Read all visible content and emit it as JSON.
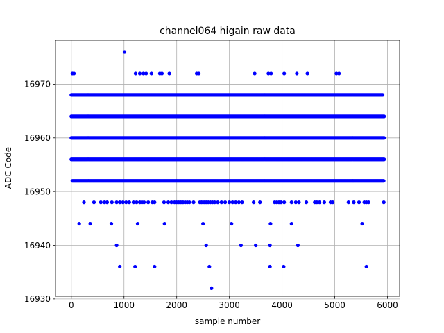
{
  "chart_data": {
    "type": "scatter",
    "title": "channel064 higain raw data",
    "xlabel": "sample number",
    "ylabel": "ADC Code",
    "xlim": [
      -300,
      6230
    ],
    "ylim": [
      16930.5,
      16978.2
    ],
    "xticks": [
      0,
      1000,
      2000,
      3000,
      4000,
      5000,
      6000
    ],
    "yticks": [
      16930,
      16940,
      16950,
      16960,
      16970
    ],
    "grid": true,
    "marker_color": "#0000ff",
    "series": [
      {
        "dense_rows": [
          {
            "y": 16956,
            "x_start": 0,
            "x_end": 5940
          },
          {
            "y": 16960,
            "x_start": 0,
            "x_end": 5940
          },
          {
            "y": 16964,
            "x_start": 0,
            "x_end": 5940
          },
          {
            "y": 16952,
            "x_start": 20,
            "x_end": 5940
          },
          {
            "y": 16968,
            "x_start": 0,
            "x_end": 5920
          }
        ],
        "points": [
          {
            "x": 1010,
            "y": 16976
          },
          {
            "x": 20,
            "y": 16972
          },
          {
            "x": 50,
            "y": 16972
          },
          {
            "x": 1220,
            "y": 16972
          },
          {
            "x": 1300,
            "y": 16972
          },
          {
            "x": 1370,
            "y": 16972
          },
          {
            "x": 1420,
            "y": 16972
          },
          {
            "x": 1520,
            "y": 16972
          },
          {
            "x": 1680,
            "y": 16972
          },
          {
            "x": 1720,
            "y": 16972
          },
          {
            "x": 1860,
            "y": 16972
          },
          {
            "x": 2380,
            "y": 16972
          },
          {
            "x": 2420,
            "y": 16972
          },
          {
            "x": 3480,
            "y": 16972
          },
          {
            "x": 3740,
            "y": 16972
          },
          {
            "x": 3790,
            "y": 16972
          },
          {
            "x": 4040,
            "y": 16972
          },
          {
            "x": 4280,
            "y": 16972
          },
          {
            "x": 4480,
            "y": 16972
          },
          {
            "x": 5030,
            "y": 16972
          },
          {
            "x": 5080,
            "y": 16972
          },
          {
            "x": 240,
            "y": 16948
          },
          {
            "x": 430,
            "y": 16948
          },
          {
            "x": 560,
            "y": 16948
          },
          {
            "x": 630,
            "y": 16948
          },
          {
            "x": 680,
            "y": 16948
          },
          {
            "x": 770,
            "y": 16948
          },
          {
            "x": 860,
            "y": 16948
          },
          {
            "x": 920,
            "y": 16948
          },
          {
            "x": 980,
            "y": 16948
          },
          {
            "x": 1040,
            "y": 16948
          },
          {
            "x": 1100,
            "y": 16948
          },
          {
            "x": 1180,
            "y": 16948
          },
          {
            "x": 1240,
            "y": 16948
          },
          {
            "x": 1300,
            "y": 16948
          },
          {
            "x": 1340,
            "y": 16948
          },
          {
            "x": 1380,
            "y": 16948
          },
          {
            "x": 1460,
            "y": 16948
          },
          {
            "x": 1540,
            "y": 16948
          },
          {
            "x": 1580,
            "y": 16948
          },
          {
            "x": 1760,
            "y": 16948
          },
          {
            "x": 1840,
            "y": 16948
          },
          {
            "x": 1900,
            "y": 16948
          },
          {
            "x": 1960,
            "y": 16948
          },
          {
            "x": 2000,
            "y": 16948
          },
          {
            "x": 2040,
            "y": 16948
          },
          {
            "x": 2080,
            "y": 16948
          },
          {
            "x": 2120,
            "y": 16948
          },
          {
            "x": 2160,
            "y": 16948
          },
          {
            "x": 2200,
            "y": 16948
          },
          {
            "x": 2240,
            "y": 16948
          },
          {
            "x": 2320,
            "y": 16948
          },
          {
            "x": 2440,
            "y": 16948
          },
          {
            "x": 2470,
            "y": 16948
          },
          {
            "x": 2500,
            "y": 16948
          },
          {
            "x": 2530,
            "y": 16948
          },
          {
            "x": 2560,
            "y": 16948
          },
          {
            "x": 2600,
            "y": 16948
          },
          {
            "x": 2640,
            "y": 16948
          },
          {
            "x": 2680,
            "y": 16948
          },
          {
            "x": 2720,
            "y": 16948
          },
          {
            "x": 2780,
            "y": 16948
          },
          {
            "x": 2850,
            "y": 16948
          },
          {
            "x": 2920,
            "y": 16948
          },
          {
            "x": 3000,
            "y": 16948
          },
          {
            "x": 3060,
            "y": 16948
          },
          {
            "x": 3120,
            "y": 16948
          },
          {
            "x": 3180,
            "y": 16948
          },
          {
            "x": 3240,
            "y": 16948
          },
          {
            "x": 3460,
            "y": 16948
          },
          {
            "x": 3580,
            "y": 16948
          },
          {
            "x": 3860,
            "y": 16948
          },
          {
            "x": 3900,
            "y": 16948
          },
          {
            "x": 3940,
            "y": 16948
          },
          {
            "x": 3980,
            "y": 16948
          },
          {
            "x": 4040,
            "y": 16948
          },
          {
            "x": 4180,
            "y": 16948
          },
          {
            "x": 4260,
            "y": 16948
          },
          {
            "x": 4320,
            "y": 16948
          },
          {
            "x": 4460,
            "y": 16948
          },
          {
            "x": 4620,
            "y": 16948
          },
          {
            "x": 4660,
            "y": 16948
          },
          {
            "x": 4710,
            "y": 16948
          },
          {
            "x": 4800,
            "y": 16948
          },
          {
            "x": 4920,
            "y": 16948
          },
          {
            "x": 4960,
            "y": 16948
          },
          {
            "x": 5260,
            "y": 16948
          },
          {
            "x": 5360,
            "y": 16948
          },
          {
            "x": 5460,
            "y": 16948
          },
          {
            "x": 5560,
            "y": 16948
          },
          {
            "x": 5600,
            "y": 16948
          },
          {
            "x": 5640,
            "y": 16948
          },
          {
            "x": 5930,
            "y": 16948
          },
          {
            "x": 150,
            "y": 16944
          },
          {
            "x": 360,
            "y": 16944
          },
          {
            "x": 760,
            "y": 16944
          },
          {
            "x": 1260,
            "y": 16944
          },
          {
            "x": 1770,
            "y": 16944
          },
          {
            "x": 2500,
            "y": 16944
          },
          {
            "x": 3040,
            "y": 16944
          },
          {
            "x": 3780,
            "y": 16944
          },
          {
            "x": 4180,
            "y": 16944
          },
          {
            "x": 5520,
            "y": 16944
          },
          {
            "x": 860,
            "y": 16940
          },
          {
            "x": 2560,
            "y": 16940
          },
          {
            "x": 3220,
            "y": 16940
          },
          {
            "x": 3500,
            "y": 16940
          },
          {
            "x": 3770,
            "y": 16940
          },
          {
            "x": 4300,
            "y": 16940
          },
          {
            "x": 920,
            "y": 16936
          },
          {
            "x": 1210,
            "y": 16936
          },
          {
            "x": 1580,
            "y": 16936
          },
          {
            "x": 2620,
            "y": 16936
          },
          {
            "x": 3770,
            "y": 16936
          },
          {
            "x": 4030,
            "y": 16936
          },
          {
            "x": 5600,
            "y": 16936
          },
          {
            "x": 2660,
            "y": 16932
          }
        ]
      }
    ]
  }
}
